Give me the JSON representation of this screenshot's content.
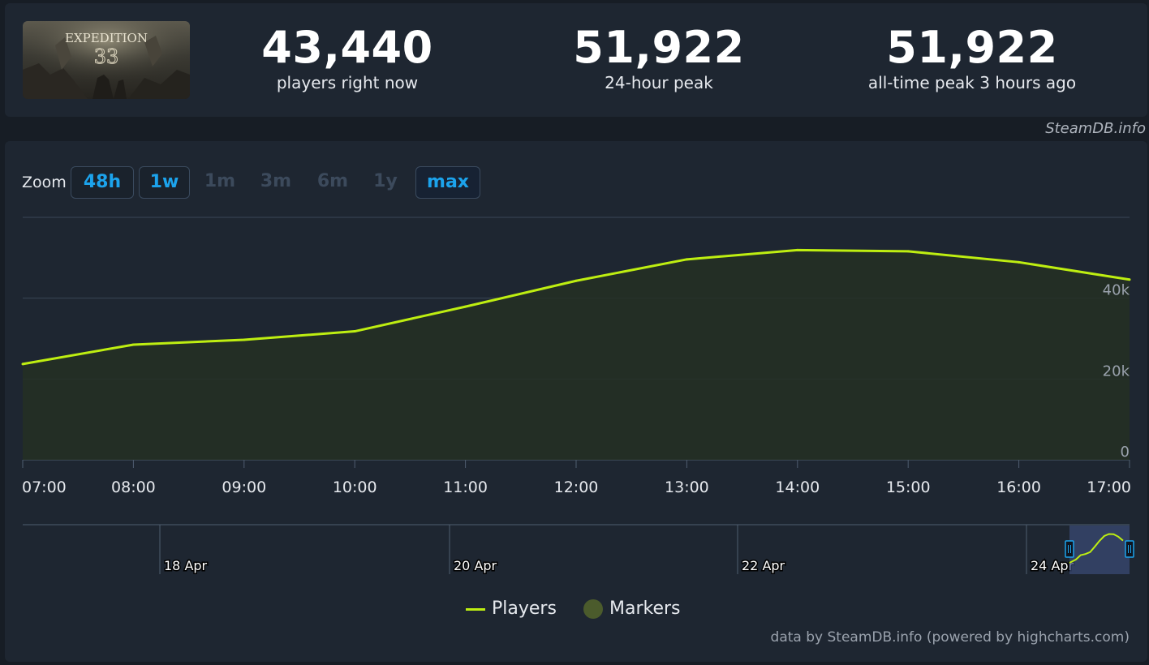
{
  "header": {
    "stats": [
      {
        "value": "43,440",
        "label": "players right now"
      },
      {
        "value": "51,922",
        "label": "24-hour peak"
      },
      {
        "value": "51,922",
        "label": "all-time peak 3 hours ago"
      }
    ],
    "credit": "SteamDB.info"
  },
  "zoom": {
    "label": "Zoom",
    "buttons": [
      {
        "label": "48h",
        "enabled": true,
        "active": false
      },
      {
        "label": "1w",
        "enabled": true,
        "active": false
      },
      {
        "label": "1m",
        "enabled": false,
        "active": false
      },
      {
        "label": "3m",
        "enabled": false,
        "active": false
      },
      {
        "label": "6m",
        "enabled": false,
        "active": false
      },
      {
        "label": "1y",
        "enabled": false,
        "active": false
      },
      {
        "label": "max",
        "enabled": true,
        "active": true
      }
    ]
  },
  "chart_data": {
    "type": "area",
    "x": [
      "07:00",
      "08:00",
      "09:00",
      "10:00",
      "11:00",
      "12:00",
      "13:00",
      "14:00",
      "15:00",
      "16:00",
      "17:00"
    ],
    "series": [
      {
        "name": "Players",
        "values": [
          23700,
          28500,
          29700,
          31800,
          37900,
          44300,
          49600,
          51900,
          51600,
          48900,
          44600
        ],
        "color": "#beee11"
      }
    ],
    "y_ticks": [
      "0",
      "20k",
      "40k"
    ],
    "ylim": [
      0,
      60000
    ],
    "x_ticks": [
      "07:00",
      "08:00",
      "09:00",
      "10:00",
      "11:00",
      "12:00",
      "13:00",
      "14:00",
      "15:00",
      "16:00",
      "17:00"
    ],
    "grid": true,
    "navigator": {
      "date_labels": [
        "18 Apr",
        "20 Apr",
        "22 Apr",
        "24 Apr"
      ]
    },
    "legend": [
      {
        "name": "Players",
        "color": "#beee11"
      },
      {
        "name": "Markers",
        "color": "#4b5b2c"
      }
    ],
    "legend_position": "bottom-center"
  },
  "footer": {
    "credit": "data by SteamDB.info (powered by highcharts.com)"
  },
  "colors": {
    "background": "#171d25",
    "panel": "#1e2631",
    "accent": "#1ca3ec",
    "series": "#beee11",
    "grid": "#3a4656"
  }
}
